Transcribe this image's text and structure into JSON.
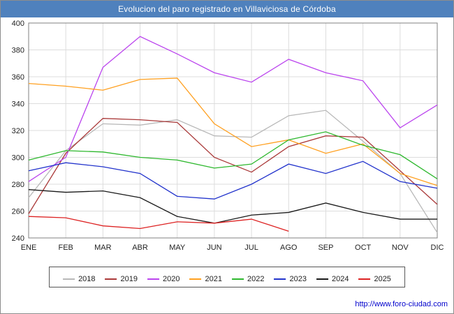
{
  "title": "Evolucion del paro registrado en Villaviciosa de Córdoba",
  "footer": {
    "url": "http://www.foro-ciudad.com"
  },
  "chart_data": {
    "type": "line",
    "title": "Evolucion del paro registrado en Villaviciosa de Córdoba",
    "xlabel": "",
    "ylabel": "",
    "ylim": [
      240,
      400
    ],
    "ytick_step": 20,
    "grid": true,
    "legend_position": "bottom",
    "categories": [
      "ENE",
      "FEB",
      "MAR",
      "ABR",
      "MAY",
      "JUN",
      "JUL",
      "AGO",
      "SEP",
      "OCT",
      "NOV",
      "DIC"
    ],
    "series": [
      {
        "name": "2018",
        "color": "#b8b8b8",
        "values": [
          270,
          305,
          325,
          324,
          328,
          316,
          315,
          331,
          335,
          312,
          288,
          244
        ]
      },
      {
        "name": "2019",
        "color": "#aa3939",
        "values": [
          258,
          303,
          329,
          328,
          326,
          300,
          289,
          308,
          316,
          315,
          290,
          265
        ]
      },
      {
        "name": "2020",
        "color": "#bb44ee",
        "values": [
          282,
          300,
          367,
          390,
          377,
          363,
          356,
          373,
          363,
          357,
          322,
          339
        ]
      },
      {
        "name": "2021",
        "color": "#ffa020",
        "values": [
          355,
          353,
          350,
          358,
          359,
          325,
          308,
          313,
          303,
          310,
          288,
          279
        ]
      },
      {
        "name": "2022",
        "color": "#2eb82e",
        "values": [
          298,
          305,
          304,
          300,
          298,
          292,
          295,
          313,
          319,
          309,
          302,
          284
        ]
      },
      {
        "name": "2023",
        "color": "#2233cc",
        "values": [
          290,
          296,
          293,
          288,
          271,
          269,
          280,
          295,
          288,
          297,
          282,
          277
        ]
      },
      {
        "name": "2024",
        "color": "#1a1a1a",
        "values": [
          276,
          274,
          275,
          270,
          256,
          251,
          257,
          259,
          266,
          259,
          254,
          254
        ]
      },
      {
        "name": "2025",
        "color": "#dd2222",
        "values": [
          256,
          255,
          249,
          247,
          252,
          251,
          254,
          245
        ]
      }
    ]
  }
}
